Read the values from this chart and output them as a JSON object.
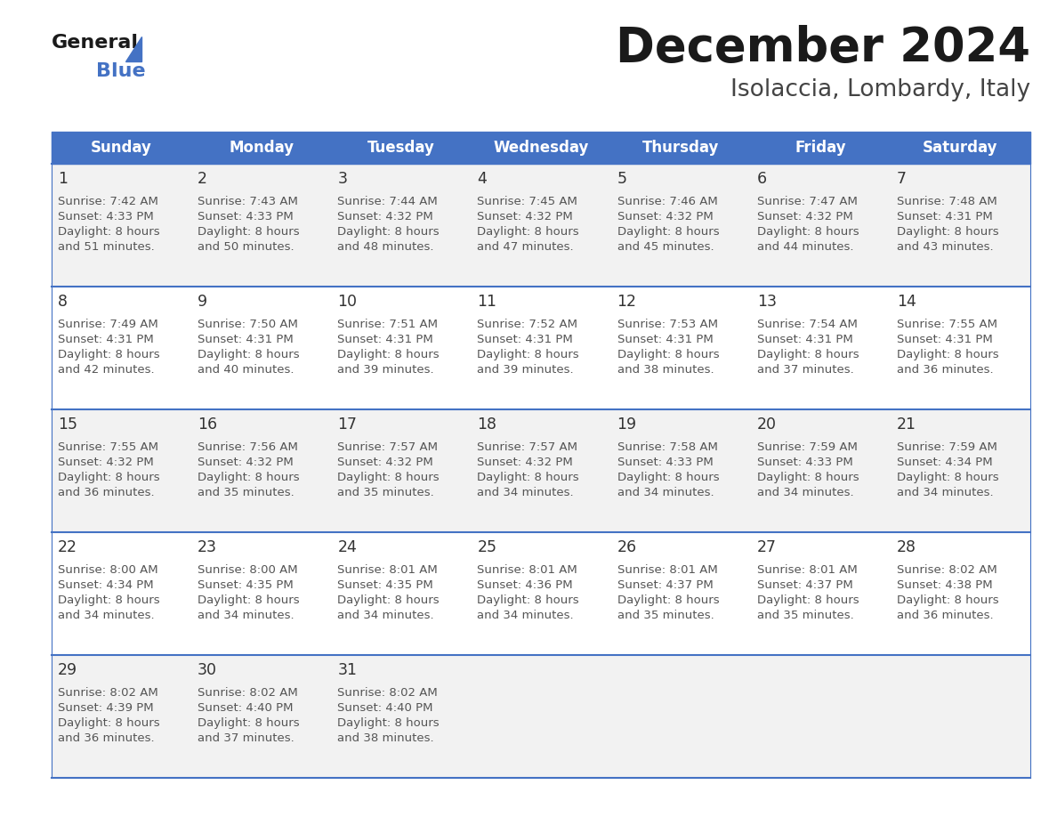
{
  "title": "December 2024",
  "subtitle": "Isolaccia, Lombardy, Italy",
  "header_color": "#4472C4",
  "header_text_color": "#FFFFFF",
  "days_of_week": [
    "Sunday",
    "Monday",
    "Tuesday",
    "Wednesday",
    "Thursday",
    "Friday",
    "Saturday"
  ],
  "cell_bg_even": "#F2F2F2",
  "cell_bg_odd": "#FFFFFF",
  "border_color": "#4472C4",
  "text_color": "#555555",
  "day_number_color": "#333333",
  "calendar_data": [
    [
      {
        "day": "1",
        "sunrise": "7:42 AM",
        "sunset": "4:33 PM",
        "dl1": "8 hours",
        "dl2": "and 51 minutes."
      },
      {
        "day": "2",
        "sunrise": "7:43 AM",
        "sunset": "4:33 PM",
        "dl1": "8 hours",
        "dl2": "and 50 minutes."
      },
      {
        "day": "3",
        "sunrise": "7:44 AM",
        "sunset": "4:32 PM",
        "dl1": "8 hours",
        "dl2": "and 48 minutes."
      },
      {
        "day": "4",
        "sunrise": "7:45 AM",
        "sunset": "4:32 PM",
        "dl1": "8 hours",
        "dl2": "and 47 minutes."
      },
      {
        "day": "5",
        "sunrise": "7:46 AM",
        "sunset": "4:32 PM",
        "dl1": "8 hours",
        "dl2": "and 45 minutes."
      },
      {
        "day": "6",
        "sunrise": "7:47 AM",
        "sunset": "4:32 PM",
        "dl1": "8 hours",
        "dl2": "and 44 minutes."
      },
      {
        "day": "7",
        "sunrise": "7:48 AM",
        "sunset": "4:31 PM",
        "dl1": "8 hours",
        "dl2": "and 43 minutes."
      }
    ],
    [
      {
        "day": "8",
        "sunrise": "7:49 AM",
        "sunset": "4:31 PM",
        "dl1": "8 hours",
        "dl2": "and 42 minutes."
      },
      {
        "day": "9",
        "sunrise": "7:50 AM",
        "sunset": "4:31 PM",
        "dl1": "8 hours",
        "dl2": "and 40 minutes."
      },
      {
        "day": "10",
        "sunrise": "7:51 AM",
        "sunset": "4:31 PM",
        "dl1": "8 hours",
        "dl2": "and 39 minutes."
      },
      {
        "day": "11",
        "sunrise": "7:52 AM",
        "sunset": "4:31 PM",
        "dl1": "8 hours",
        "dl2": "and 39 minutes."
      },
      {
        "day": "12",
        "sunrise": "7:53 AM",
        "sunset": "4:31 PM",
        "dl1": "8 hours",
        "dl2": "and 38 minutes."
      },
      {
        "day": "13",
        "sunrise": "7:54 AM",
        "sunset": "4:31 PM",
        "dl1": "8 hours",
        "dl2": "and 37 minutes."
      },
      {
        "day": "14",
        "sunrise": "7:55 AM",
        "sunset": "4:31 PM",
        "dl1": "8 hours",
        "dl2": "and 36 minutes."
      }
    ],
    [
      {
        "day": "15",
        "sunrise": "7:55 AM",
        "sunset": "4:32 PM",
        "dl1": "8 hours",
        "dl2": "and 36 minutes."
      },
      {
        "day": "16",
        "sunrise": "7:56 AM",
        "sunset": "4:32 PM",
        "dl1": "8 hours",
        "dl2": "and 35 minutes."
      },
      {
        "day": "17",
        "sunrise": "7:57 AM",
        "sunset": "4:32 PM",
        "dl1": "8 hours",
        "dl2": "and 35 minutes."
      },
      {
        "day": "18",
        "sunrise": "7:57 AM",
        "sunset": "4:32 PM",
        "dl1": "8 hours",
        "dl2": "and 34 minutes."
      },
      {
        "day": "19",
        "sunrise": "7:58 AM",
        "sunset": "4:33 PM",
        "dl1": "8 hours",
        "dl2": "and 34 minutes."
      },
      {
        "day": "20",
        "sunrise": "7:59 AM",
        "sunset": "4:33 PM",
        "dl1": "8 hours",
        "dl2": "and 34 minutes."
      },
      {
        "day": "21",
        "sunrise": "7:59 AM",
        "sunset": "4:34 PM",
        "dl1": "8 hours",
        "dl2": "and 34 minutes."
      }
    ],
    [
      {
        "day": "22",
        "sunrise": "8:00 AM",
        "sunset": "4:34 PM",
        "dl1": "8 hours",
        "dl2": "and 34 minutes."
      },
      {
        "day": "23",
        "sunrise": "8:00 AM",
        "sunset": "4:35 PM",
        "dl1": "8 hours",
        "dl2": "and 34 minutes."
      },
      {
        "day": "24",
        "sunrise": "8:01 AM",
        "sunset": "4:35 PM",
        "dl1": "8 hours",
        "dl2": "and 34 minutes."
      },
      {
        "day": "25",
        "sunrise": "8:01 AM",
        "sunset": "4:36 PM",
        "dl1": "8 hours",
        "dl2": "and 34 minutes."
      },
      {
        "day": "26",
        "sunrise": "8:01 AM",
        "sunset": "4:37 PM",
        "dl1": "8 hours",
        "dl2": "and 35 minutes."
      },
      {
        "day": "27",
        "sunrise": "8:01 AM",
        "sunset": "4:37 PM",
        "dl1": "8 hours",
        "dl2": "and 35 minutes."
      },
      {
        "day": "28",
        "sunrise": "8:02 AM",
        "sunset": "4:38 PM",
        "dl1": "8 hours",
        "dl2": "and 36 minutes."
      }
    ],
    [
      {
        "day": "29",
        "sunrise": "8:02 AM",
        "sunset": "4:39 PM",
        "dl1": "8 hours",
        "dl2": "and 36 minutes."
      },
      {
        "day": "30",
        "sunrise": "8:02 AM",
        "sunset": "4:40 PM",
        "dl1": "8 hours",
        "dl2": "and 37 minutes."
      },
      {
        "day": "31",
        "sunrise": "8:02 AM",
        "sunset": "4:40 PM",
        "dl1": "8 hours",
        "dl2": "and 38 minutes."
      },
      null,
      null,
      null,
      null
    ]
  ]
}
